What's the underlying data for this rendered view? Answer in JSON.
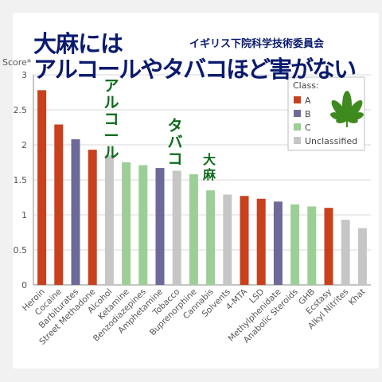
{
  "titles": {
    "line1": "大麻には",
    "line2": "アルコールやタバコほど害がない",
    "subtitle": "イギリス下院科学技術委員会"
  },
  "callouts": {
    "alcohol": "アルコール",
    "tobacco": "タバコ",
    "cannabis": "大麻"
  },
  "colors": {
    "A": "#c8401e",
    "B": "#6d6a9a",
    "C": "#9ccf95",
    "Unclassified": "#c6c6c6",
    "title": "#0a1a6e",
    "callout": "#0e6b1c"
  },
  "chart_data": {
    "type": "bar",
    "ylabel": "Score*",
    "ylim": [
      0,
      3
    ],
    "yticks": [
      "0",
      "0.5",
      "1",
      "1.5",
      "2",
      "2.5",
      "3"
    ],
    "grid": true,
    "legend": {
      "title": "Class:",
      "position": "top-right",
      "entries": [
        "A",
        "B",
        "C",
        "Unclassified"
      ]
    },
    "categories": [
      "Heroin",
      "Cocaine",
      "Barbiturates",
      "Street Methadone",
      "Alcohol",
      "Ketamine",
      "Benzodiazepines",
      "Amphetamine",
      "Tobacco",
      "Buprenorphine",
      "Cannabis",
      "Solvents",
      "4-MTA",
      "LSD",
      "Methylphenidate",
      "Anabolic Steroids",
      "GHB",
      "Ecstasy",
      "Alkyl Nitrites",
      "Khat"
    ],
    "values": [
      2.78,
      2.29,
      2.08,
      1.93,
      1.85,
      1.75,
      1.71,
      1.67,
      1.63,
      1.58,
      1.35,
      1.29,
      1.27,
      1.23,
      1.19,
      1.15,
      1.12,
      1.1,
      0.93,
      0.81
    ],
    "class": [
      "A",
      "A",
      "B",
      "A",
      "Unclassified",
      "C",
      "C",
      "B",
      "Unclassified",
      "C",
      "C",
      "Unclassified",
      "A",
      "A",
      "B",
      "C",
      "C",
      "A",
      "Unclassified",
      "Unclassified"
    ]
  }
}
